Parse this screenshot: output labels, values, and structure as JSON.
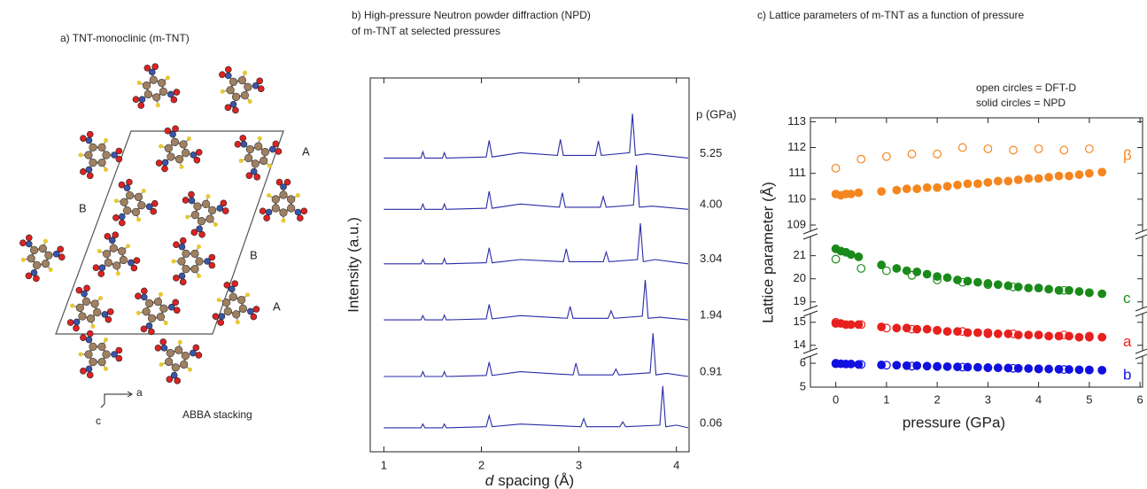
{
  "panel_a": {
    "title": "a) TNT-monoclinic (m-TNT)",
    "labels": [
      "A",
      "B",
      "B",
      "A"
    ],
    "axes": [
      "a",
      "c"
    ],
    "caption": "ABBA stacking"
  },
  "chart_data": [
    {
      "type": "line",
      "title": [
        "b) High-pressure Neutron powder diffraction (NPD)",
        "of m-TNT at selected pressures"
      ],
      "ylabel": "Intensity (a.u.)",
      "xlabel": {
        "symbol": "d",
        "text": "spacing (Å)"
      },
      "legend_title": "p (GPa)",
      "xlim": [
        0.86,
        4.13
      ],
      "xticks": [
        1,
        2,
        3,
        4
      ],
      "ylim": [
        0,
        7
      ],
      "series": [
        {
          "name": "5.25",
          "color": "#2a2aa8",
          "x": [
            1.0,
            1.38,
            1.4,
            1.42,
            1.6,
            1.62,
            1.64,
            2.05,
            2.08,
            2.11,
            2.4,
            2.78,
            2.81,
            2.84,
            3.17,
            3.2,
            3.23,
            3.52,
            3.55,
            3.58,
            3.7,
            4.12
          ],
          "values": [
            5.5,
            5.5,
            5.62,
            5.5,
            5.5,
            5.6,
            5.5,
            5.52,
            5.83,
            5.52,
            5.6,
            5.55,
            5.85,
            5.55,
            5.55,
            5.82,
            5.55,
            5.6,
            6.33,
            5.55,
            5.58,
            5.5
          ]
        },
        {
          "name": "4.00",
          "color": "#2a2aa8",
          "x": [
            1.0,
            1.38,
            1.4,
            1.42,
            1.6,
            1.62,
            1.64,
            2.05,
            2.08,
            2.11,
            2.4,
            2.8,
            2.83,
            2.86,
            3.22,
            3.25,
            3.28,
            3.56,
            3.59,
            3.62,
            3.75,
            4.12
          ],
          "values": [
            4.54,
            4.54,
            4.64,
            4.54,
            4.54,
            4.64,
            4.54,
            4.56,
            4.88,
            4.56,
            4.64,
            4.58,
            4.85,
            4.58,
            4.58,
            4.78,
            4.58,
            4.62,
            5.37,
            4.58,
            4.6,
            4.54
          ]
        },
        {
          "name": "3.04",
          "color": "#2a2aa8",
          "x": [
            1.0,
            1.38,
            1.4,
            1.42,
            1.6,
            1.62,
            1.64,
            2.05,
            2.08,
            2.11,
            2.4,
            2.84,
            2.87,
            2.9,
            3.25,
            3.28,
            3.31,
            3.6,
            3.63,
            3.66,
            3.78,
            4.12
          ],
          "values": [
            3.52,
            3.52,
            3.6,
            3.52,
            3.52,
            3.62,
            3.52,
            3.54,
            3.82,
            3.54,
            3.6,
            3.56,
            3.8,
            3.56,
            3.56,
            3.74,
            3.56,
            3.6,
            4.28,
            3.56,
            3.6,
            3.52
          ]
        },
        {
          "name": "1.94",
          "color": "#2a2aa8",
          "x": [
            1.0,
            1.38,
            1.4,
            1.42,
            1.6,
            1.62,
            1.64,
            2.05,
            2.08,
            2.11,
            2.4,
            2.88,
            2.91,
            2.94,
            3.3,
            3.33,
            3.36,
            3.65,
            3.68,
            3.71,
            3.83,
            4.12
          ],
          "values": [
            2.47,
            2.47,
            2.55,
            2.47,
            2.47,
            2.56,
            2.47,
            2.49,
            2.76,
            2.49,
            2.55,
            2.5,
            2.72,
            2.5,
            2.5,
            2.64,
            2.5,
            2.54,
            3.22,
            2.5,
            2.52,
            2.47
          ]
        },
        {
          "name": "0.91",
          "color": "#2a2aa8",
          "x": [
            1.0,
            1.38,
            1.4,
            1.42,
            1.6,
            1.62,
            1.64,
            2.05,
            2.08,
            2.11,
            2.4,
            2.94,
            2.97,
            3.0,
            3.35,
            3.38,
            3.41,
            3.73,
            3.76,
            3.79,
            3.9,
            4.12
          ],
          "values": [
            1.41,
            1.41,
            1.5,
            1.41,
            1.41,
            1.5,
            1.41,
            1.43,
            1.68,
            1.43,
            1.5,
            1.44,
            1.66,
            1.44,
            1.44,
            1.55,
            1.44,
            1.48,
            2.22,
            1.44,
            1.47,
            1.41
          ]
        },
        {
          "name": "0.06",
          "color": "#2a2aa8",
          "x": [
            1.0,
            1.38,
            1.4,
            1.42,
            1.6,
            1.62,
            1.64,
            2.05,
            2.08,
            2.11,
            2.4,
            3.02,
            3.05,
            3.08,
            3.42,
            3.45,
            3.48,
            3.83,
            3.86,
            3.89,
            4.0,
            4.12
          ],
          "values": [
            0.45,
            0.45,
            0.52,
            0.45,
            0.45,
            0.52,
            0.45,
            0.47,
            0.68,
            0.47,
            0.52,
            0.47,
            0.62,
            0.47,
            0.47,
            0.56,
            0.47,
            0.5,
            1.23,
            0.47,
            0.5,
            0.45
          ]
        }
      ]
    },
    {
      "type": "scatter",
      "title": "c) Lattice parameters of m-TNT as a function of pressure",
      "annotations": [
        "open circles = DFT-D",
        "solid circles = NPD"
      ],
      "ylabel": "Lattice parameter (Å)",
      "xlabel": "pressure (GPa)",
      "xlim": [
        -0.5,
        6.05
      ],
      "xticks": [
        0,
        1,
        2,
        3,
        4,
        5,
        6
      ],
      "broken_axis": [
        {
          "ylim": [
            109,
            113.15
          ],
          "yticks": [
            109,
            110,
            111,
            112,
            113
          ]
        },
        {
          "ylim": [
            18.8,
            21.6
          ],
          "yticks": [
            19,
            20,
            21
          ]
        },
        {
          "ylim": [
            13.8,
            15.3
          ],
          "yticks": [
            14,
            15
          ]
        },
        {
          "ylim": [
            5,
            6.3
          ],
          "yticks": [
            5,
            6
          ]
        }
      ],
      "series": [
        {
          "name": "β",
          "color": "#f5861f",
          "segment": 0,
          "solid": {
            "x": [
              0,
              0.1,
              0.2,
              0.3,
              0.45,
              0.9,
              1.2,
              1.4,
              1.6,
              1.8,
              2.0,
              2.2,
              2.4,
              2.6,
              2.8,
              3.0,
              3.2,
              3.4,
              3.6,
              3.8,
              4.0,
              4.2,
              4.4,
              4.6,
              4.8,
              5.0,
              5.25
            ],
            "values": [
              110.2,
              110.15,
              110.2,
              110.2,
              110.25,
              110.3,
              110.35,
              110.4,
              110.4,
              110.45,
              110.45,
              110.5,
              110.55,
              110.6,
              110.6,
              110.65,
              110.7,
              110.7,
              110.75,
              110.8,
              110.8,
              110.85,
              110.9,
              110.9,
              110.95,
              111.0,
              111.05
            ]
          },
          "open": {
            "x": [
              0,
              0.5,
              1.0,
              1.5,
              2.0,
              2.5,
              3.0,
              3.5,
              4.0,
              4.5,
              5.0
            ],
            "values": [
              111.2,
              111.55,
              111.65,
              111.75,
              111.75,
              112.0,
              111.95,
              111.9,
              111.95,
              111.9,
              111.95
            ]
          }
        },
        {
          "name": "c",
          "color": "#1a8a1a",
          "segment": 1,
          "solid": {
            "x": [
              0,
              0.1,
              0.2,
              0.3,
              0.45,
              0.9,
              1.2,
              1.4,
              1.6,
              1.8,
              2.0,
              2.2,
              2.4,
              2.6,
              2.8,
              3.0,
              3.2,
              3.4,
              3.6,
              3.8,
              4.0,
              4.2,
              4.4,
              4.6,
              4.8,
              5.0,
              5.25
            ],
            "values": [
              21.3,
              21.2,
              21.15,
              21.05,
              20.95,
              20.6,
              20.45,
              20.35,
              20.3,
              20.2,
              20.1,
              20.05,
              19.95,
              19.9,
              19.85,
              19.8,
              19.75,
              19.7,
              19.65,
              19.6,
              19.6,
              19.55,
              19.5,
              19.5,
              19.45,
              19.4,
              19.35
            ]
          },
          "open": {
            "x": [
              0,
              0.5,
              1.0,
              1.5,
              2.0,
              2.5,
              3.0,
              3.5,
              4.0,
              4.5,
              5.0
            ],
            "values": [
              20.85,
              20.45,
              20.35,
              20.15,
              19.95,
              19.85,
              19.75,
              19.65,
              19.6,
              19.5,
              19.4
            ]
          }
        },
        {
          "name": "a",
          "color": "#e8201e",
          "segment": 2,
          "solid": {
            "x": [
              0,
              0.1,
              0.2,
              0.3,
              0.45,
              0.9,
              1.2,
              1.4,
              1.6,
              1.8,
              2.0,
              2.2,
              2.4,
              2.6,
              2.8,
              3.0,
              3.2,
              3.4,
              3.6,
              3.8,
              4.0,
              4.2,
              4.4,
              4.6,
              4.8,
              5.0,
              5.25
            ],
            "values": [
              14.95,
              14.95,
              14.9,
              14.9,
              14.9,
              14.8,
              14.75,
              14.75,
              14.7,
              14.7,
              14.65,
              14.6,
              14.6,
              14.55,
              14.55,
              14.5,
              14.5,
              14.5,
              14.45,
              14.45,
              14.45,
              14.4,
              14.4,
              14.4,
              14.35,
              14.35,
              14.35
            ]
          },
          "open": {
            "x": [
              0,
              0.5,
              1.0,
              1.5,
              2.0,
              2.5,
              3.0,
              3.5,
              4.0,
              4.5,
              5.0
            ],
            "values": [
              15.0,
              14.9,
              14.75,
              14.7,
              14.65,
              14.6,
              14.55,
              14.5,
              14.45,
              14.45,
              14.4
            ]
          }
        },
        {
          "name": "b",
          "color": "#1010e0",
          "segment": 3,
          "solid": {
            "x": [
              0,
              0.1,
              0.2,
              0.3,
              0.45,
              0.9,
              1.2,
              1.4,
              1.6,
              1.8,
              2.0,
              2.2,
              2.4,
              2.6,
              2.8,
              3.0,
              3.2,
              3.4,
              3.6,
              3.8,
              4.0,
              4.2,
              4.4,
              4.6,
              4.8,
              5.0,
              5.25
            ],
            "values": [
              6.0,
              5.98,
              5.97,
              5.97,
              5.95,
              5.93,
              5.92,
              5.9,
              5.9,
              5.88,
              5.87,
              5.86,
              5.85,
              5.84,
              5.83,
              5.82,
              5.81,
              5.8,
              5.79,
              5.78,
              5.77,
              5.76,
              5.75,
              5.74,
              5.73,
              5.72,
              5.71
            ]
          },
          "open": {
            "x": [
              0,
              0.5,
              1.0,
              1.5,
              2.0,
              2.5,
              3.0,
              3.5,
              4.0,
              4.5,
              5.0
            ],
            "values": [
              5.98,
              5.95,
              5.92,
              5.88,
              5.86,
              5.84,
              5.81,
              5.79,
              5.76,
              5.74,
              5.72
            ]
          }
        }
      ]
    }
  ]
}
